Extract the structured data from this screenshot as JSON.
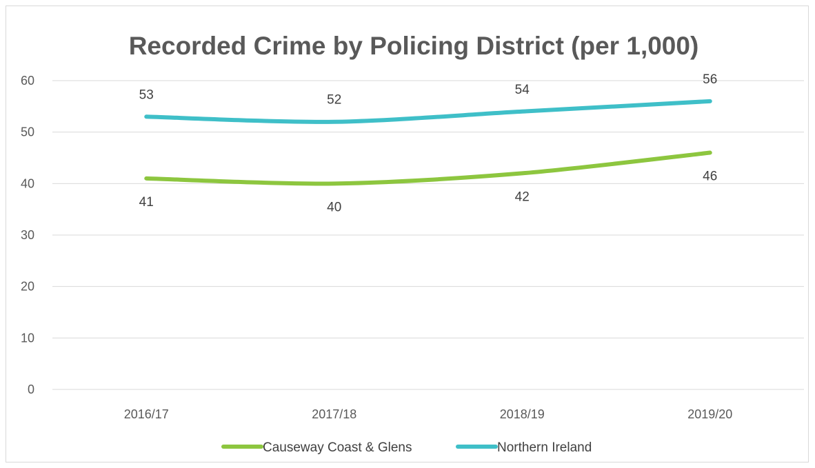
{
  "chart_data": {
    "type": "line",
    "title": "Recorded Crime by Policing District (per 1,000)",
    "categories": [
      "2016/17",
      "2017/18",
      "2018/19",
      "2019/20"
    ],
    "series": [
      {
        "name": "Causeway Coast & Glens",
        "values": [
          41,
          40,
          42,
          46
        ],
        "color": "#8dc63f",
        "label_position": "below"
      },
      {
        "name": "Northern Ireland",
        "values": [
          53,
          52,
          54,
          56
        ],
        "color": "#3fbfc8",
        "label_position": "above"
      }
    ],
    "ylim": [
      0,
      60
    ],
    "y_ticks": [
      "0",
      "10",
      "20",
      "30",
      "40",
      "50",
      "60"
    ],
    "grid": true,
    "legend_position": "bottom"
  }
}
